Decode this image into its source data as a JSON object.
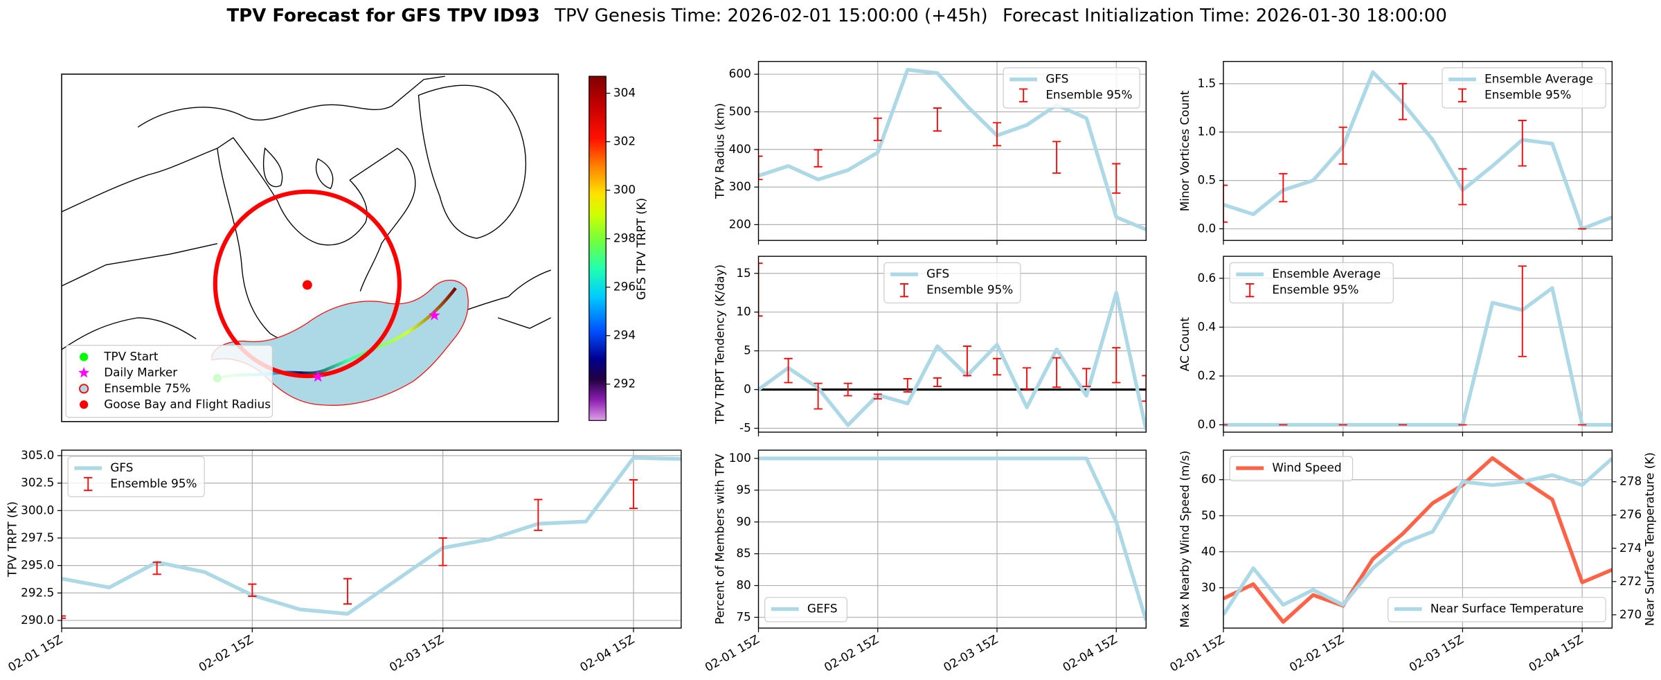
{
  "title": {
    "main": "TPV Forecast for GFS TPV ID93",
    "genesis": "TPV Genesis Time: 2026-02-01 15:00:00 (+45h)",
    "init": "Forecast Initialization Time: 2026-01-30 18:00:00"
  },
  "chart_data": [
    {
      "type": "map",
      "legend": "lower left",
      "legend_entries": [
        {
          "name": "TPV Start",
          "color": "#00ff00",
          "marker": "o"
        },
        {
          "name": "Daily Marker",
          "color": "#ff00ff",
          "marker": "*"
        },
        {
          "name": "Ensemble 75%",
          "color": "#add8e6",
          "edgecolor": "#ff0000",
          "marker": "o"
        },
        {
          "name": "Goose Bay and Flight Radius",
          "color": "#ff0000",
          "marker": "o"
        }
      ],
      "colorbar": {
        "label": "GFS TPV TRPT (K)",
        "lim": [
          290.5,
          304.7
        ],
        "ticks": [
          292,
          294,
          296,
          298,
          300,
          302,
          304
        ]
      }
    },
    {
      "type": "line",
      "ylabel": "TPV Radius (km)",
      "x": [
        0,
        6,
        12,
        18,
        24,
        30,
        36,
        42,
        48,
        54,
        60,
        66,
        72,
        78
      ],
      "xlim": [
        0,
        78
      ],
      "xticks": [
        0,
        24,
        48,
        72
      ],
      "ylim": [
        158,
        634
      ],
      "yticks": [
        200,
        300,
        400,
        500,
        600
      ],
      "grid": true,
      "legend": "upper right",
      "series": [
        {
          "name": "GFS",
          "color": "#add8e6",
          "values": [
            330,
            356,
            320,
            345,
            392,
            612,
            603,
            515,
            437,
            465,
            518,
            483,
            220,
            187
          ]
        }
      ],
      "errorbars": {
        "name": "Ensemble 95%",
        "color": "#ff0000",
        "x": [
          0,
          12,
          24,
          36,
          48,
          60,
          72
        ],
        "low": [
          320,
          354,
          424,
          449,
          410,
          337,
          284
        ],
        "high": [
          382,
          399,
          483,
          510,
          471,
          421,
          362
        ]
      }
    },
    {
      "type": "line",
      "ylabel": "Minor Vortices Count",
      "x": [
        0,
        6,
        12,
        18,
        24,
        30,
        36,
        42,
        48,
        54,
        60,
        66,
        72,
        78
      ],
      "xlim": [
        0,
        78
      ],
      "xticks": [
        0,
        24,
        48,
        72
      ],
      "ylim": [
        -0.12,
        1.73
      ],
      "yticks": [
        {
          "value": 0,
          "label": "0.0"
        },
        0.5,
        {
          "value": 1,
          "label": "1.0"
        },
        1.5
      ],
      "grid": true,
      "legend": "upper right",
      "series": [
        {
          "name": "Ensemble Average",
          "color": "#add8e6",
          "values": [
            0.25,
            0.15,
            0.4,
            0.5,
            0.85,
            1.62,
            1.3,
            0.92,
            0.4,
            0.65,
            0.92,
            0.88,
            0,
            0.12
          ]
        }
      ],
      "errorbars": {
        "name": "Ensemble 95%",
        "color": "#ff0000",
        "x": [
          0,
          12,
          24,
          36,
          48,
          60,
          72
        ],
        "low": [
          0.07,
          0.28,
          0.67,
          1.13,
          0.25,
          0.65,
          0
        ],
        "high": [
          0.45,
          0.57,
          1.05,
          1.5,
          0.62,
          1.12,
          0
        ]
      }
    },
    {
      "type": "line",
      "ylabel": "TPV TRPT Tendency (K/day)",
      "x": [
        0,
        6,
        12,
        18,
        24,
        30,
        36,
        42,
        48,
        54,
        60,
        66,
        72,
        78
      ],
      "xlim": [
        0,
        78
      ],
      "xticks": [
        0,
        24,
        48,
        72
      ],
      "ylim": [
        -5.5,
        17.2
      ],
      "yticks": [
        -5,
        0,
        5,
        10,
        15
      ],
      "grid": true,
      "legend": "upper center",
      "hline": 0,
      "series": [
        {
          "name": "GFS",
          "color": "#add8e6",
          "values": [
            0,
            2.8,
            0.2,
            -4.6,
            -0.7,
            -1.8,
            5.6,
            1.8,
            5.8,
            -2.3,
            5.2,
            -0.8,
            12.5,
            -5.2
          ]
        }
      ],
      "errorbars": {
        "name": "Ensemble 95%",
        "color": "#ff0000",
        "x": [
          0,
          6,
          12,
          18,
          24,
          30,
          36,
          42,
          48,
          54,
          60,
          66,
          72,
          78
        ],
        "low": [
          9.5,
          0.9,
          -2.5,
          -0.8,
          -1.2,
          -0.3,
          0.4,
          1.8,
          1.9,
          0,
          0.3,
          0.4,
          0.9,
          -1.5
        ],
        "high": [
          16.3,
          4,
          0.8,
          0.8,
          -0.6,
          1.4,
          1.5,
          5.6,
          4,
          2.8,
          4.1,
          2.7,
          5.4,
          1.8
        ]
      }
    },
    {
      "type": "line",
      "ylabel": "AC Count",
      "x": [
        0,
        6,
        12,
        18,
        24,
        30,
        36,
        42,
        48,
        54,
        60,
        66,
        72,
        78
      ],
      "xlim": [
        0,
        78
      ],
      "xticks": [
        0,
        24,
        48,
        72
      ],
      "ylim": [
        -0.03,
        0.69
      ],
      "yticks": [
        {
          "value": 0,
          "label": "0.0"
        },
        0.2,
        0.4,
        0.6
      ],
      "grid": true,
      "legend": "upper left",
      "series": [
        {
          "name": "Ensemble Average",
          "color": "#add8e6",
          "values": [
            0,
            0,
            0,
            0,
            0,
            0,
            0,
            0,
            0,
            0.5,
            0.47,
            0.56,
            0,
            0
          ]
        }
      ],
      "errorbars": {
        "name": "Ensemble 95%",
        "color": "#ff0000",
        "x": [
          0,
          12,
          24,
          36,
          48,
          60,
          72
        ],
        "low": [
          0,
          0,
          0,
          0,
          0,
          0.28,
          0
        ],
        "high": [
          0,
          0,
          0,
          0,
          0,
          0.65,
          0
        ]
      }
    },
    {
      "type": "line",
      "ylabel": "TPV TRPT (K)",
      "x": [
        0,
        6,
        12,
        18,
        24,
        30,
        36,
        42,
        48,
        54,
        60,
        66,
        72,
        78
      ],
      "xlim": [
        0,
        78
      ],
      "xticks": [
        {
          "value": 0,
          "label": "02-01 15Z"
        },
        {
          "value": 24,
          "label": "02-02 15Z"
        },
        {
          "value": 48,
          "label": "02-03 15Z"
        },
        {
          "value": 72,
          "label": "02-04 15Z"
        }
      ],
      "ylim": [
        289.3,
        305.5
      ],
      "yticks": [
        {
          "value": 290,
          "label": "290.0"
        },
        292.5,
        {
          "value": 295,
          "label": "295.0"
        },
        297.5,
        {
          "value": 300,
          "label": "300.0"
        },
        302.5,
        {
          "value": 305,
          "label": "305.0"
        }
      ],
      "grid": true,
      "legend": "upper left",
      "series": [
        {
          "name": "GFS",
          "color": "#add8e6",
          "values": [
            293.8,
            293,
            295.3,
            294.4,
            292.3,
            291,
            290.6,
            293.6,
            296.6,
            297.4,
            298.8,
            299,
            304.8,
            304.7
          ]
        }
      ],
      "errorbars": {
        "name": "Ensemble 95%",
        "color": "#ff0000",
        "x": [
          0,
          12,
          24,
          36,
          48,
          60,
          72
        ],
        "low": [
          290.2,
          294.2,
          292.2,
          291.5,
          295,
          298.2,
          300.2
        ],
        "high": [
          290.4,
          295.3,
          293.3,
          293.8,
          297.5,
          301,
          302.8
        ]
      }
    },
    {
      "type": "line",
      "ylabel": "Percent of Members with TPV",
      "x": [
        0,
        6,
        12,
        18,
        24,
        30,
        36,
        42,
        48,
        54,
        60,
        66,
        72,
        78
      ],
      "xlim": [
        0,
        78
      ],
      "xticks": [
        {
          "value": 0,
          "label": "02-01 15Z"
        },
        {
          "value": 24,
          "label": "02-02 15Z"
        },
        {
          "value": 48,
          "label": "02-03 15Z"
        },
        {
          "value": 72,
          "label": "02-04 15Z"
        }
      ],
      "ylim": [
        73.3,
        101.3
      ],
      "yticks": [
        75,
        80,
        85,
        90,
        95,
        100
      ],
      "grid": true,
      "legend": "lower left",
      "series": [
        {
          "name": "GEFS",
          "color": "#add8e6",
          "values": [
            100,
            100,
            100,
            100,
            100,
            100,
            100,
            100,
            100,
            100,
            100,
            100,
            90,
            74.5
          ]
        }
      ]
    },
    {
      "type": "line",
      "ylabel": "Max Nearby Wind Speed (m/s)",
      "ylabel_color": "#ff6347",
      "y2label": "Near Surface Temperature (K)",
      "y2label_color": "#4169e1",
      "x": [
        0,
        6,
        12,
        18,
        24,
        30,
        36,
        42,
        48,
        54,
        60,
        66,
        72,
        78
      ],
      "xlim": [
        0,
        78
      ],
      "xticks": [
        {
          "value": 0,
          "label": "02-01 15Z"
        },
        {
          "value": 24,
          "label": "02-02 15Z"
        },
        {
          "value": 48,
          "label": "02-03 15Z"
        },
        {
          "value": 72,
          "label": "02-04 15Z"
        }
      ],
      "ylim": [
        18.8,
        68.2
      ],
      "yticks": [
        30,
        40,
        50,
        60
      ],
      "y2lim": [
        269.2,
        279.9
      ],
      "y2ticks": [
        270,
        272,
        274,
        276,
        278
      ],
      "grid": true,
      "legend": "upper left",
      "legend2": "lower right",
      "series": [
        {
          "name": "Wind Speed",
          "color": "#ff6347",
          "values": [
            27,
            31,
            20.5,
            28,
            25,
            38,
            45,
            53.5,
            58.5,
            66,
            60,
            54.5,
            31.5,
            35
          ]
        },
        {
          "name": "Near Surface Temperature",
          "color": "#add8e6",
          "axis": "y2",
          "values": [
            270,
            272.8,
            270.6,
            271.5,
            270.6,
            272.8,
            274.3,
            275,
            278,
            277.8,
            278,
            278.4,
            277.8,
            279.4
          ]
        }
      ]
    }
  ]
}
